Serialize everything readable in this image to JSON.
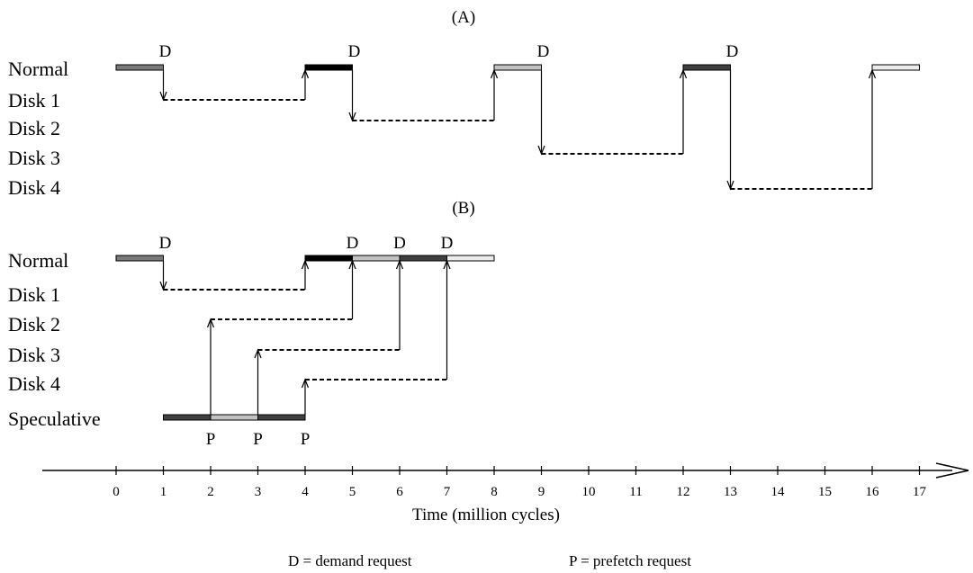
{
  "panels": {
    "a": {
      "title": "(A)",
      "rows": [
        "Normal",
        "Disk 1",
        "Disk 2",
        "Disk 3",
        "Disk 4"
      ]
    },
    "b": {
      "title": "(B)",
      "rows": [
        "Normal",
        "Disk 1",
        "Disk 2",
        "Disk 3",
        "Disk 4",
        "Speculative"
      ]
    }
  },
  "axis": {
    "title": "Time (million cycles)",
    "ticks": [
      "0",
      "1",
      "2",
      "3",
      "4",
      "5",
      "6",
      "7",
      "8",
      "9",
      "10",
      "11",
      "12",
      "13",
      "14",
      "15",
      "16",
      "17"
    ]
  },
  "legend": {
    "demand": "D = demand request",
    "prefetch": "P =  prefetch request"
  },
  "markers": {
    "demand": "D",
    "prefetch": "P"
  },
  "colors": {
    "block1": "#7a7a7a",
    "block2": "#000000",
    "block3": "#c2c2c2",
    "block4": "#3f3f3f",
    "block5": "#ececec",
    "line": "#000000"
  },
  "timeline": {
    "a": {
      "blocks": [
        {
          "row": "Normal",
          "start": 0,
          "end": 1,
          "color": "block1"
        },
        {
          "row": "Normal",
          "start": 4,
          "end": 5,
          "color": "block2"
        },
        {
          "row": "Normal",
          "start": 8,
          "end": 9,
          "color": "block3"
        },
        {
          "row": "Normal",
          "start": 12,
          "end": 13,
          "color": "block4"
        },
        {
          "row": "Normal",
          "start": 16,
          "end": 17,
          "color": "block5"
        }
      ],
      "disk_waits": [
        {
          "row": "Disk 1",
          "start": 1,
          "end": 4
        },
        {
          "row": "Disk 2",
          "start": 5,
          "end": 8
        },
        {
          "row": "Disk 3",
          "start": 9,
          "end": 12
        },
        {
          "row": "Disk 4",
          "start": 13,
          "end": 16
        }
      ],
      "demand_requests": [
        1,
        5,
        9,
        13
      ]
    },
    "b": {
      "blocks": [
        {
          "row": "Normal",
          "start": 0,
          "end": 1,
          "color": "block1"
        },
        {
          "row": "Normal",
          "start": 4,
          "end": 5,
          "color": "block2"
        },
        {
          "row": "Normal",
          "start": 5,
          "end": 6,
          "color": "block3"
        },
        {
          "row": "Normal",
          "start": 6,
          "end": 7,
          "color": "block4"
        },
        {
          "row": "Normal",
          "start": 7,
          "end": 8,
          "color": "block5"
        },
        {
          "row": "Speculative",
          "start": 1,
          "end": 2,
          "color": "block4"
        },
        {
          "row": "Speculative",
          "start": 2,
          "end": 3,
          "color": "block3"
        },
        {
          "row": "Speculative",
          "start": 3,
          "end": 4,
          "color": "block4"
        }
      ],
      "disk_waits": [
        {
          "row": "Disk 1",
          "start": 1,
          "end": 4
        },
        {
          "row": "Disk 2",
          "start": 2,
          "end": 5
        },
        {
          "row": "Disk 3",
          "start": 3,
          "end": 6
        },
        {
          "row": "Disk 4",
          "start": 4,
          "end": 7
        }
      ],
      "demand_requests": [
        1,
        5,
        6,
        7
      ],
      "prefetch_requests": [
        2,
        3,
        4
      ]
    }
  }
}
